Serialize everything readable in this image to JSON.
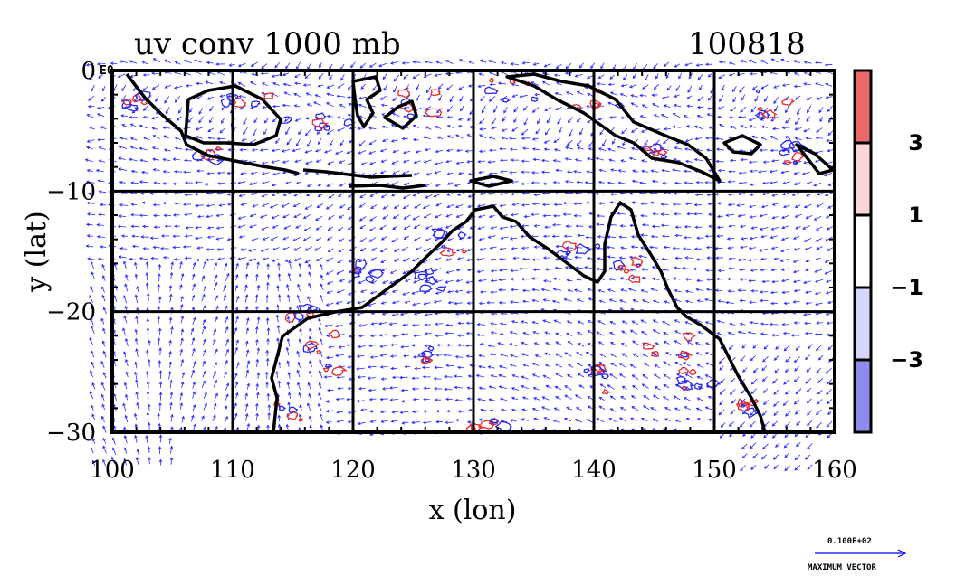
{
  "chart_data": {
    "type": "vector-field-contour",
    "title": "uv conv 1000 mb",
    "date_label": "100818",
    "xlabel": "x (lon)",
    "ylabel": "y (lat)",
    "xlim": [
      100,
      160
    ],
    "ylim": [
      -30,
      0
    ],
    "x_ticks": [
      100,
      110,
      120,
      130,
      140,
      150,
      160
    ],
    "y_ticks": [
      0,
      -10,
      -20,
      -30
    ],
    "x_tick_labels": [
      "100",
      "110",
      "120",
      "130",
      "140",
      "150",
      "160"
    ],
    "y_tick_labels": [
      "0",
      "−10",
      "−20",
      "−30"
    ],
    "y_zero_suffix": "E0",
    "grid": true,
    "vector_color": "#0000ff",
    "coastline_color": "#000000",
    "contour_positive_color": "#e8282a",
    "contour_negative_color": "#2828e8",
    "colorbar": {
      "bands": [
        {
          "from": 3,
          "to": 5,
          "color": "#ea6a6a"
        },
        {
          "from": 1,
          "to": 3,
          "color": "#fbd6d6"
        },
        {
          "from": -1,
          "to": 1,
          "color": "#ffffff"
        },
        {
          "from": -3,
          "to": -1,
          "color": "#d6d6fb"
        },
        {
          "from": -5,
          "to": -3,
          "color": "#8c8cee"
        }
      ],
      "labels": [
        {
          "value": 3,
          "text": "3"
        },
        {
          "value": 1,
          "text": "1"
        },
        {
          "value": -1,
          "text": "−1"
        },
        {
          "value": -3,
          "text": "−3"
        }
      ]
    },
    "reference_vector": {
      "value_text": "0.100E+02",
      "caption": "MAXIMUM VECTOR"
    }
  }
}
